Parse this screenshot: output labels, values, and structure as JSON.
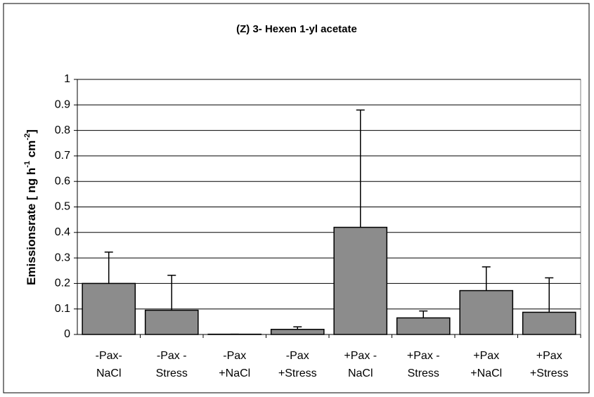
{
  "chart_data": {
    "type": "bar",
    "title": "(Z) 3- Hexen 1-yl acetate",
    "y_label": [
      "Emissionsrate [ ng h",
      "-1",
      " cm",
      "-2",
      "]"
    ],
    "categories": [
      [
        "-Pax-",
        "NaCl"
      ],
      [
        "-Pax -",
        "Stress"
      ],
      [
        "-Pax",
        "+NaCl"
      ],
      [
        "-Pax",
        "+Stress"
      ],
      [
        "+Pax -",
        "NaCl"
      ],
      [
        "+Pax -",
        "Stress"
      ],
      [
        "+Pax",
        "+NaCl"
      ],
      [
        "+Pax",
        "+Stress"
      ]
    ],
    "values": [
      0.2,
      0.095,
      0.001,
      0.02,
      0.42,
      0.065,
      0.172,
      0.087
    ],
    "errors": [
      0.123,
      0.137,
      0,
      0.01,
      0.46,
      0.027,
      0.093,
      0.135
    ],
    "color": "#8c8c8c",
    "ylim": [
      0,
      1
    ],
    "yticks": [
      0,
      0.1,
      0.2,
      0.3,
      0.4,
      0.5,
      0.6,
      0.7,
      0.8,
      0.9,
      1
    ],
    "grid": true
  }
}
